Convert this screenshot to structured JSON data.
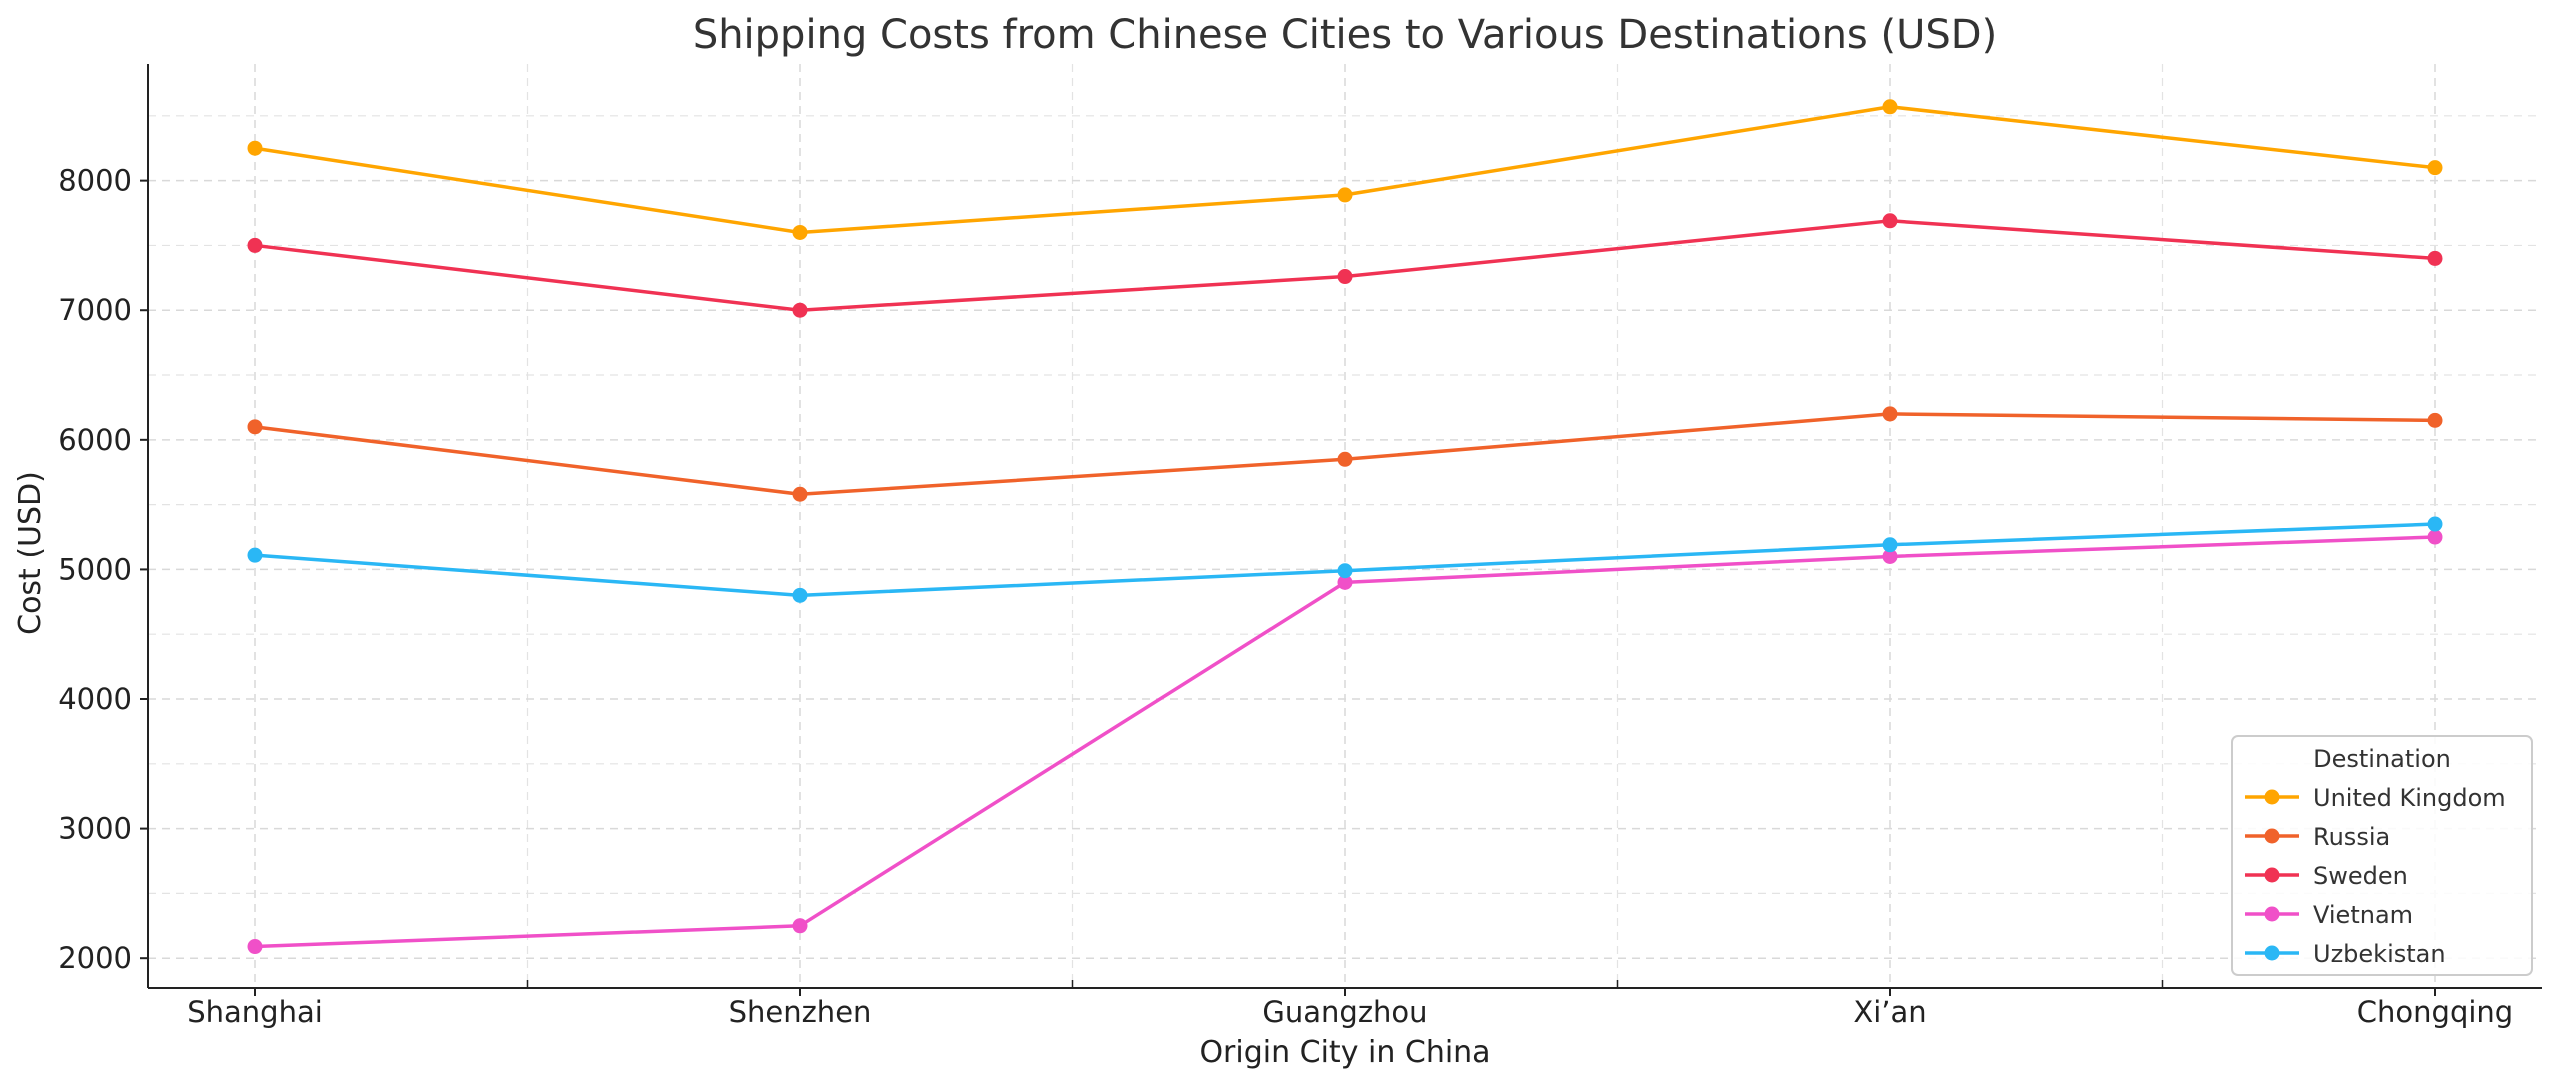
{
  "chart_data": {
    "type": "line",
    "title": "Shipping Costs from Chinese Cities to Various Destinations (USD)",
    "xlabel": "Origin City in China",
    "ylabel": "Cost (USD)",
    "categories": [
      "Shanghai",
      "Shenzhen",
      "Guangzhou",
      "Xi’an",
      "Chongqing"
    ],
    "ylim": [
      1770,
      8900
    ],
    "yticks": [
      2000,
      3000,
      4000,
      5000,
      6000,
      7000,
      8000
    ],
    "grid": true,
    "legend": {
      "title": "Destination",
      "placement": "lower-right"
    },
    "series": [
      {
        "name": "United Kingdom",
        "color": "#FFA500",
        "values": [
          8250,
          7600,
          7890,
          8570,
          8100
        ]
      },
      {
        "name": "Russia",
        "color": "#F0622A",
        "values": [
          6100,
          5580,
          5850,
          6200,
          6150
        ]
      },
      {
        "name": "Sweden",
        "color": "#F03253",
        "values": [
          7500,
          7000,
          7260,
          7690,
          7400
        ]
      },
      {
        "name": "Vietnam",
        "color": "#F050C8",
        "values": [
          2090,
          2250,
          4900,
          5100,
          5250
        ]
      },
      {
        "name": "Uzbekistan",
        "color": "#2AB7F5",
        "values": [
          5110,
          4800,
          4990,
          5190,
          5350
        ]
      }
    ]
  }
}
